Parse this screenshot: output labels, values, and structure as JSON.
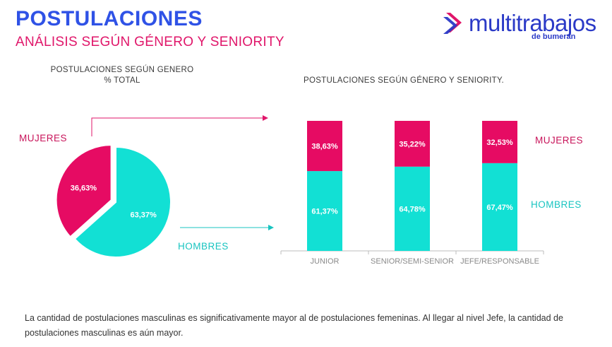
{
  "header": {
    "title": "POSTULACIONES",
    "subtitle": "ANÁLISIS SEGÚN GÉNERO Y SENIORITY"
  },
  "logo": {
    "name": "multitrabajos",
    "tagline": "de bumeran",
    "colors": {
      "brand_blue": "#2b3ac7",
      "brand_pink": "#e0166a"
    }
  },
  "pie_block": {
    "title_line1": "POSTULACIONES SEGÚN GENERO",
    "title_line2": "% TOTAL",
    "label_mujeres": "MUJERES",
    "label_hombres": "HOMBRES"
  },
  "bar_block": {
    "title": "POSTULACIONES SEGÚN GÉNERO Y SENIORITY.",
    "label_mujeres": "MUJERES",
    "label_hombres": "HOMBRES"
  },
  "footer": {
    "text": "La cantidad de postulaciones masculinas es significativamente mayor al de postulaciones femeninas. Al llegar al nivel Jefe, la cantidad de postulaciones masculinas es aún mayor."
  },
  "colors": {
    "mujeres": "#e60b63",
    "hombres": "#12e0d4",
    "title_blue": "#2f52e6"
  },
  "chart_data": [
    {
      "type": "pie",
      "title": "POSTULACIONES SEGÚN GENERO % TOTAL",
      "slices": [
        {
          "name": "MUJERES",
          "value": 36.63,
          "label": "36,63%",
          "color": "#e60b63"
        },
        {
          "name": "HOMBRES",
          "value": 63.37,
          "label": "63,37%",
          "color": "#12e0d4"
        }
      ]
    },
    {
      "type": "bar",
      "stacked": true,
      "title": "POSTULACIONES SEGÚN GÉNERO Y SENIORITY.",
      "categories": [
        "JUNIOR",
        "SENIOR/SEMI-SENIOR",
        "JEFE/RESPONSABLE"
      ],
      "ylim": [
        0,
        100
      ],
      "grid": false,
      "series": [
        {
          "name": "HOMBRES",
          "values": [
            61.37,
            64.78,
            67.47
          ],
          "labels": [
            "61,37%",
            "64,78%",
            "67,47%"
          ],
          "color": "#12e0d4"
        },
        {
          "name": "MUJERES",
          "values": [
            38.63,
            35.22,
            32.53
          ],
          "labels": [
            "38,63%",
            "35,22%",
            "32,53%"
          ],
          "color": "#e60b63"
        }
      ]
    }
  ]
}
